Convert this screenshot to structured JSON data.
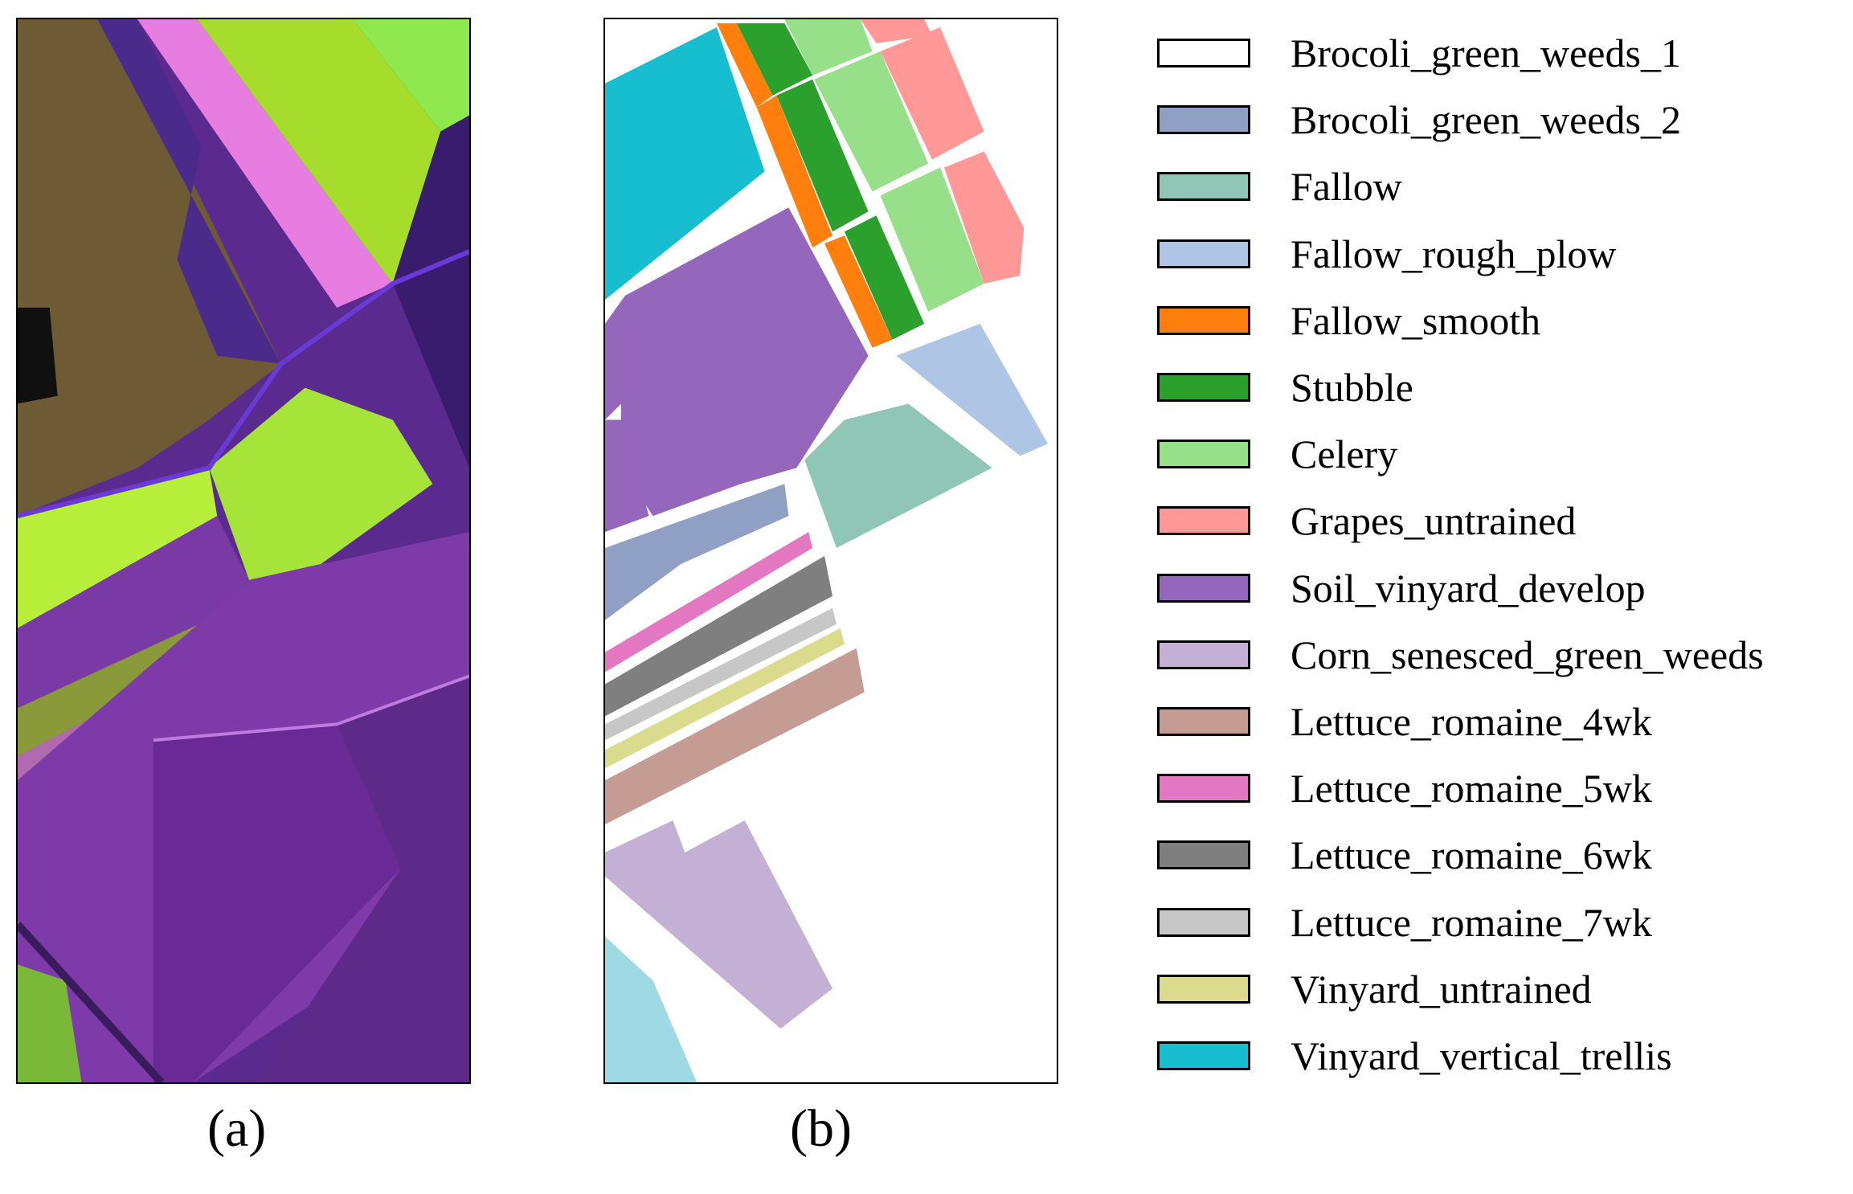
{
  "captions": {
    "a": "(a)",
    "b": "(b)"
  },
  "legend": [
    {
      "label": "Brocoli_green_weeds_1",
      "color": "#ffffff"
    },
    {
      "label": "Brocoli_green_weeds_2",
      "color": "#8fa0c4"
    },
    {
      "label": "Fallow",
      "color": "#8fc6b6"
    },
    {
      "label": "Fallow_rough_plow",
      "color": "#aec5e6"
    },
    {
      "label": "Fallow_smooth",
      "color": "#ff7f0e"
    },
    {
      "label": "Stubble",
      "color": "#2ca02c"
    },
    {
      "label": "Celery",
      "color": "#98df8a"
    },
    {
      "label": "Grapes_untrained",
      "color": "#ff9896"
    },
    {
      "label": "Soil_vinyard_develop",
      "color": "#9467bd"
    },
    {
      "label": "Corn_senesced_green_weeds",
      "color": "#c5b0d5"
    },
    {
      "label": "Lettuce_romaine_4wk",
      "color": "#c49c94"
    },
    {
      "label": "Lettuce_romaine_5wk",
      "color": "#e377c2"
    },
    {
      "label": "Lettuce_romaine_6wk",
      "color": "#7f7f7f"
    },
    {
      "label": "Lettuce_romaine_7wk",
      "color": "#c7c7c7"
    },
    {
      "label": "Vinyard_untrained",
      "color": "#dbdb8d"
    },
    {
      "label": "Vinyard_vertical_trellis",
      "color": "#17becf"
    }
  ]
}
